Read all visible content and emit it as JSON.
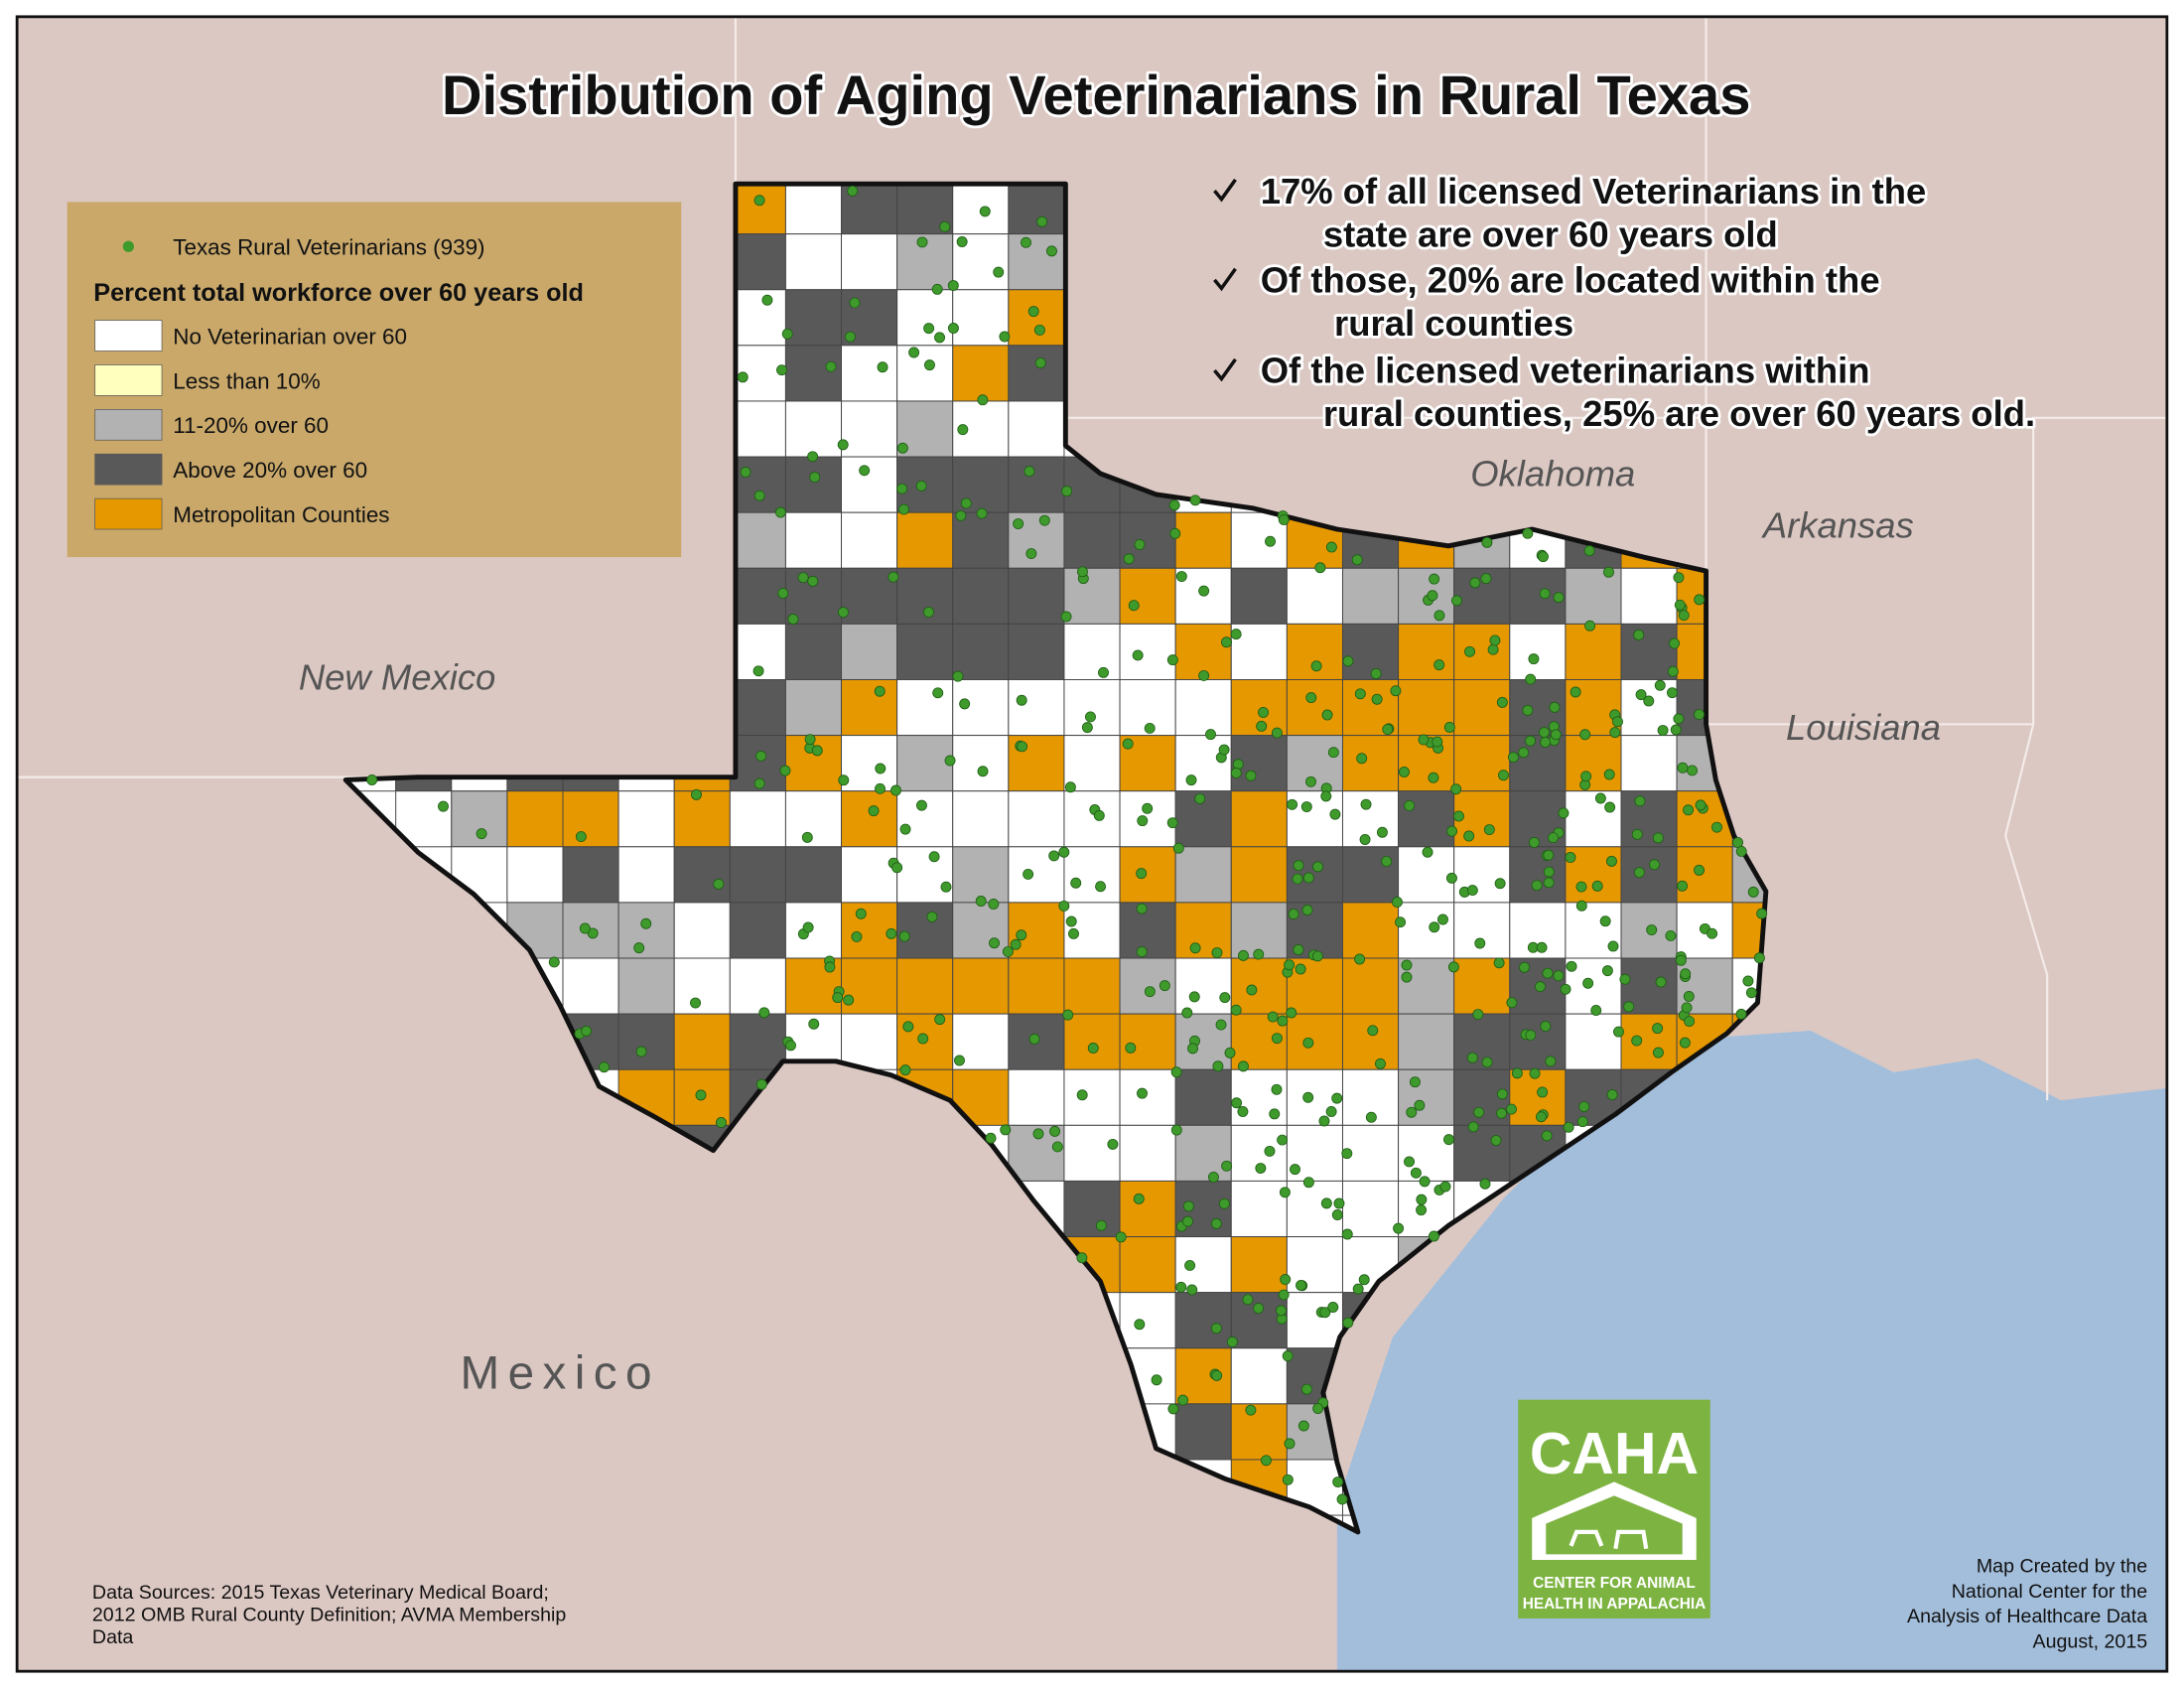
{
  "title": "Distribution of Aging Veterinarians in Rural Texas",
  "legend": {
    "points": {
      "label": "Texas Rural Veterinarians (939)",
      "color": "#3f9a2c"
    },
    "heading": "Percent total workforce over 60 years old",
    "entries": [
      {
        "label": "No Veterinarian over 60",
        "color": "#ffffff"
      },
      {
        "label": "Less than 10%",
        "color": "#ffffbe"
      },
      {
        "label": "11-20% over 60",
        "color": "#b2b2b2"
      },
      {
        "label": "Above 20% over 60",
        "color": "#595959"
      },
      {
        "label": "Metropolitan Counties",
        "color": "#e69800"
      }
    ]
  },
  "notes": [
    {
      "lines": [
        "17% of all licensed Veterinarians in the",
        "state are over 60 years old"
      ]
    },
    {
      "lines": [
        "Of those, 20% are located within the",
        "rural counties"
      ]
    },
    {
      "lines": [
        "Of the licensed veterinarians within",
        "rural counties, 25% are over 60 years old."
      ]
    }
  ],
  "places": [
    "Oklahoma",
    "Arkansas",
    "Louisiana",
    "New Mexico",
    "Mexico"
  ],
  "sources": [
    "Data Sources: 2015 Texas Veterinary Medical Board;",
    "2012 OMB Rural County Definition; AVMA Membership",
    "Data"
  ],
  "credit": [
    "Map Created by the",
    "National Center for the",
    "Analysis of Healthcare Data",
    "August, 2015"
  ],
  "logo": {
    "name": "CAHA",
    "lines": [
      "CENTER FOR ANIMAL",
      "HEALTH IN APPALACHIA"
    ]
  }
}
